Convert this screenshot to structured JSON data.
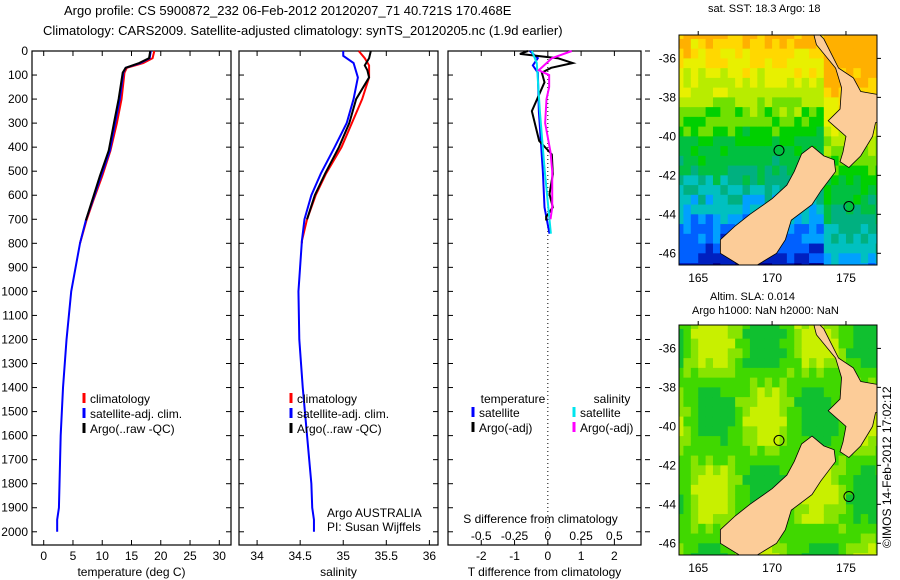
{
  "title_line1": "Argo profile: CS 5900872_232 06-Feb-2012 20120207_71 40.721S 170.468E",
  "title_line2": "Climatology: CARS2009. Satellite-adjusted climatology: synTS_20120205.nc (1.9d earlier)",
  "colors": {
    "climatology": "#ff0000",
    "satellite": "#0000ff",
    "argo": "#000000",
    "s_satellite": "#00e5ee",
    "s_argo": "#ff00ff"
  },
  "chart_data": [
    {
      "type": "line",
      "name": "temperature",
      "xlabel": "temperature (deg C)",
      "xlim": [
        -2,
        32
      ],
      "ylim": [
        0,
        2055
      ],
      "xticks": [
        "0",
        "5",
        "10",
        "15",
        "20",
        "25",
        "30"
      ],
      "xtick_values": [
        0,
        5,
        10,
        15,
        20,
        25,
        30
      ],
      "yticks": [
        "0",
        "100",
        "200",
        "300",
        "400",
        "500",
        "600",
        "700",
        "800",
        "900",
        "1000",
        "1100",
        "1200",
        "1300",
        "1400",
        "1500",
        "1600",
        "1700",
        "1800",
        "1900",
        "2000"
      ],
      "legend": [
        "climatology",
        "satellite-adj. clim.",
        "Argo(..raw -QC)"
      ],
      "series": [
        {
          "name": "climatology",
          "color": "#ff0000",
          "depth": [
            0,
            30,
            50,
            70,
            90,
            200,
            300,
            415,
            520,
            620,
            705,
            800
          ],
          "values": [
            18.9,
            18.6,
            17,
            14.2,
            13.8,
            13.3,
            12.5,
            11.4,
            10,
            8.5,
            7.3,
            6.2
          ]
        },
        {
          "name": "satellite-adj. clim.",
          "color": "#0000ff",
          "depth": [
            0,
            30,
            50,
            70,
            90,
            200,
            300,
            415,
            520,
            620,
            705,
            800,
            1000,
            1200,
            1400,
            1600,
            1800,
            1900,
            1950,
            2000
          ],
          "values": [
            18.3,
            18.1,
            16.5,
            14,
            13.6,
            13,
            12.2,
            11.3,
            9.8,
            8.4,
            7.2,
            6.2,
            4.7,
            3.9,
            3.3,
            2.9,
            2.7,
            2.6,
            2.3,
            2.3
          ]
        },
        {
          "name": "Argo(..raw -QC)",
          "color": "#000000",
          "depth": [
            0,
            30,
            50,
            70,
            90,
            200,
            300,
            415,
            520,
            620,
            705
          ],
          "values": [
            18.2,
            18,
            16.3,
            14,
            13.5,
            12.8,
            12,
            11.1,
            9.6,
            8.3,
            7.2
          ]
        }
      ]
    },
    {
      "type": "line",
      "name": "salinity",
      "xlabel": "salinity",
      "xlim": [
        33.79,
        36.1
      ],
      "ylim": [
        0,
        2055
      ],
      "xticks": [
        "34",
        "34.5",
        "35",
        "35.5",
        "36"
      ],
      "xtick_values": [
        34,
        34.5,
        35,
        35.5,
        36
      ],
      "legend": [
        "climatology",
        "satellite-adj. clim.",
        "Argo(..raw -QC)"
      ],
      "annotation": [
        "Argo AUSTRALIA",
        "PI: Susan Wijffels"
      ],
      "series": [
        {
          "name": "climatology",
          "color": "#ff0000",
          "depth": [
            0,
            30,
            60,
            110,
            200,
            300,
            400,
            510,
            600,
            700,
            790,
            800
          ],
          "values": [
            35.18,
            35.25,
            35.3,
            35.3,
            35.22,
            35.1,
            34.98,
            34.8,
            34.68,
            34.58,
            34.52,
            34.52
          ]
        },
        {
          "name": "satellite-adj. clim.",
          "color": "#0000ff",
          "depth": [
            0,
            20,
            50,
            110,
            200,
            300,
            400,
            510,
            600,
            700,
            790,
            1000,
            1200,
            1400,
            1600,
            1800,
            1900,
            1950,
            2000
          ],
          "values": [
            35.0,
            35.0,
            35.12,
            35.17,
            35.12,
            35.04,
            34.9,
            34.74,
            34.63,
            34.55,
            34.52,
            34.48,
            34.49,
            34.53,
            34.58,
            34.63,
            34.64,
            34.66,
            34.66
          ]
        },
        {
          "name": "Argo(..raw -QC)",
          "color": "#000000",
          "depth": [
            0,
            30,
            60,
            80,
            110,
            200,
            300,
            400,
            510,
            600,
            700
          ],
          "values": [
            35.32,
            35.3,
            35.25,
            35.28,
            35.3,
            35.15,
            35.07,
            34.95,
            34.79,
            34.67,
            34.58
          ]
        }
      ]
    },
    {
      "type": "line",
      "name": "differences",
      "xlabel": "T difference from climatology",
      "xlabel_top": "S difference from climatology",
      "xlim": [
        -3,
        2.8
      ],
      "ylim": [
        0,
        2055
      ],
      "xticks": [
        "-2",
        "-1",
        "0",
        "1",
        "2"
      ],
      "xtick_values": [
        -2,
        -1,
        0,
        1,
        2
      ],
      "xticks_top": [
        "-0.5",
        "-0.25",
        "0",
        "0.25",
        "0.5"
      ],
      "xtick_top_values": [
        -0.5,
        -0.25,
        0,
        0.25,
        0.5
      ],
      "legend_temperature": {
        "title": "temperature",
        "items": [
          "satellite",
          "Argo(-adj)"
        ]
      },
      "legend_salinity": {
        "title": "salinity",
        "items": [
          "satellite",
          "Argo(-adj)"
        ]
      },
      "series": [
        {
          "name": "T satellite",
          "axis": "T",
          "color": "#0000ff",
          "depth": [
            0,
            30,
            60,
            90,
            250,
            500,
            650,
            760
          ],
          "values": [
            -0.54,
            -0.3,
            -0.45,
            -0.3,
            -0.27,
            -0.15,
            -0.1,
            0.05
          ]
        },
        {
          "name": "T Argo(-adj)",
          "axis": "T",
          "color": "#000000",
          "depth": [
            0,
            12,
            30,
            50,
            70,
            90,
            130,
            250,
            374,
            430,
            512,
            595,
            650,
            690,
            705
          ],
          "values": [
            -0.6,
            -0.84,
            0.3,
            0.75,
            0.1,
            -0.18,
            -0.1,
            -0.48,
            -0.26,
            0.12,
            0.15,
            0.05,
            0.15,
            -0.05,
            -0.05
          ]
        },
        {
          "name": "S satellite",
          "axis": "S",
          "color": "#00e5ee",
          "depth": [
            0,
            50,
            250,
            500,
            760
          ],
          "values": [
            -0.12,
            -0.083,
            -0.06,
            -0.023,
            0.023
          ]
        },
        {
          "name": "S Argo(-adj)",
          "axis": "S",
          "color": "#ff00ff",
          "depth": [
            0,
            30,
            80,
            100,
            150,
            200,
            300,
            420,
            500,
            650,
            700
          ],
          "values": [
            0.18,
            0.03,
            -0.068,
            0.01,
            0.01,
            -0.01,
            -0.02,
            0.02,
            0.033,
            0.033,
            0.02
          ]
        }
      ]
    },
    {
      "type": "heatmap",
      "name": "sst-map",
      "title": "sat. SST: 18.3 Argo: 18",
      "xlim": [
        163.7,
        177.1
      ],
      "ylim": [
        -46.6,
        -34.8
      ],
      "xticks": [
        "165",
        "170",
        "175"
      ],
      "xtick_values": [
        165,
        170,
        175
      ],
      "yticks": [
        "-36",
        "-38",
        "-40",
        "-42",
        "-44",
        "-46"
      ],
      "ytick_values": [
        -36,
        -38,
        -40,
        -42,
        -44,
        -46
      ],
      "profile_lon": 170.468,
      "profile_lat": -40.721
    },
    {
      "type": "heatmap",
      "name": "sla-map",
      "title_line1": "Altim. SLA: 0.014",
      "title_line2": "Argo h1000: NaN h2000: NaN",
      "xlim": [
        163.7,
        177.1
      ],
      "ylim": [
        -46.6,
        -34.8
      ],
      "xticks": [
        "165",
        "170",
        "175"
      ],
      "xtick_values": [
        165,
        170,
        175
      ],
      "yticks": [
        "-36",
        "-38",
        "-40",
        "-42",
        "-44",
        "-46"
      ],
      "ytick_values": [
        -36,
        -38,
        -40,
        -42,
        -44,
        -46
      ],
      "profile_lon": 170.468,
      "profile_lat": -40.721
    }
  ],
  "credit": "©IMOS 14-Feb-2012 17:02:12"
}
